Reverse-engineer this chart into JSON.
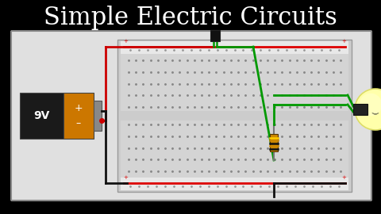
{
  "title": "Simple Electric Circuits",
  "title_color": "#ffffff",
  "bg_color": "#000000",
  "panel_bg": "#e0e0e0",
  "panel_border": "#888888",
  "bb_body": "#cccccc",
  "bb_rail_strip": "#e8e8e8",
  "bb_dot": "#999999",
  "bb_center_bg": "#d8d8d8",
  "bb_rail_red": "#dd0000",
  "battery_black": "#1a1a1a",
  "battery_orange": "#cc7700",
  "battery_term_gray": "#888888",
  "wire_red": "#cc0000",
  "wire_black": "#111111",
  "wire_green": "#009900",
  "resistor_body": "#cc8800",
  "resistor_stripe1": "#111111",
  "resistor_stripe2": "#cc8800",
  "bulb_yellow": "#ffffaa",
  "bulb_edge": "#dddd66",
  "bulb_base": "#222222",
  "switch_body": "#111111",
  "title_fontsize": 22
}
